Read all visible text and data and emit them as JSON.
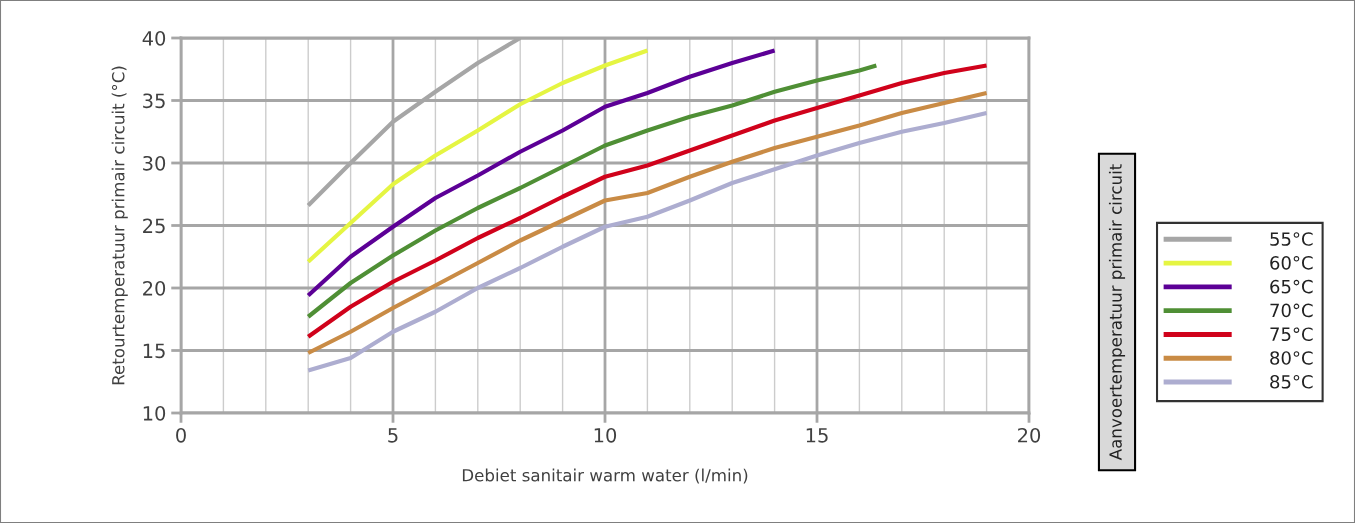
{
  "chart_data": {
    "type": "line",
    "xlabel": "Debiet sanitair warm water (l/min)",
    "ylabel": "Retourtemperatuur primair circuit (°C)",
    "legend_title": "Aanvoertemperatuur primair circuit",
    "series": [
      {
        "name": "55°C",
        "color": "#a6a6a6",
        "x": [
          3,
          4,
          5,
          6,
          7,
          8
        ],
        "values": [
          26.6,
          30.0,
          33.3,
          35.7,
          38.0,
          40.0
        ]
      },
      {
        "name": "60°C",
        "color": "#e5f542",
        "x": [
          3,
          4,
          5,
          6,
          7,
          8,
          9,
          10,
          11
        ],
        "values": [
          22.1,
          25.2,
          28.3,
          30.6,
          32.6,
          34.7,
          36.4,
          37.8,
          39.0
        ]
      },
      {
        "name": "65°C",
        "color": "#5c0096",
        "x": [
          3,
          4,
          5,
          6,
          7,
          8,
          9,
          10,
          11,
          12,
          13,
          14
        ],
        "values": [
          19.4,
          22.5,
          24.9,
          27.2,
          29.0,
          30.9,
          32.6,
          34.5,
          35.6,
          36.9,
          38.0,
          39.0
        ]
      },
      {
        "name": "70°C",
        "color": "#4f8f35",
        "x": [
          3,
          4,
          5,
          6,
          7,
          8,
          9,
          10,
          11,
          12,
          13,
          14,
          15,
          16,
          16.4
        ],
        "values": [
          17.7,
          20.4,
          22.6,
          24.6,
          26.4,
          28.0,
          29.7,
          31.4,
          32.6,
          33.7,
          34.6,
          35.7,
          36.6,
          37.4,
          37.8
        ]
      },
      {
        "name": "75°C",
        "color": "#d0021b",
        "x": [
          3,
          4,
          5,
          6,
          7,
          8,
          9,
          10,
          11,
          12,
          13,
          14,
          15,
          16,
          17,
          18,
          19
        ],
        "values": [
          16.1,
          18.5,
          20.5,
          22.2,
          24.0,
          25.6,
          27.3,
          28.9,
          29.8,
          31.0,
          32.2,
          33.4,
          34.4,
          35.4,
          36.4,
          37.2,
          37.8
        ]
      },
      {
        "name": "80°C",
        "color": "#c98b45",
        "x": [
          3,
          4,
          5,
          6,
          7,
          8,
          9,
          10,
          11,
          12,
          13,
          14,
          15,
          16,
          17,
          18,
          19
        ],
        "values": [
          14.8,
          16.5,
          18.4,
          20.2,
          22.0,
          23.8,
          25.4,
          27.0,
          27.6,
          28.9,
          30.1,
          31.2,
          32.1,
          33.0,
          34.0,
          34.8,
          35.6
        ]
      },
      {
        "name": "85°C",
        "color": "#adadd0",
        "x": [
          3,
          4,
          5,
          6,
          7,
          8,
          9,
          10,
          11,
          12,
          13,
          14,
          15,
          16,
          17,
          18,
          19
        ],
        "values": [
          13.4,
          14.4,
          16.5,
          18.1,
          20.0,
          21.6,
          23.3,
          24.9,
          25.7,
          27.0,
          28.4,
          29.5,
          30.6,
          31.6,
          32.5,
          33.2,
          34.0
        ]
      }
    ],
    "xlim": [
      0,
      20
    ],
    "ylim": [
      10,
      40
    ],
    "xticks": [
      0,
      {
        "value": 1,
        "label": null
      },
      {
        "value": 2,
        "label": null
      },
      {
        "value": 3,
        "label": null
      },
      {
        "value": 4,
        "label": null
      },
      5,
      {
        "value": 6,
        "label": null
      },
      {
        "value": 7,
        "label": null
      },
      {
        "value": 8,
        "label": null
      },
      {
        "value": 9,
        "label": null
      },
      10,
      {
        "value": 11,
        "label": null
      },
      {
        "value": 12,
        "label": null
      },
      {
        "value": 13,
        "label": null
      },
      {
        "value": 14,
        "label": null
      },
      15,
      {
        "value": 16,
        "label": null
      },
      {
        "value": 17,
        "label": null
      },
      {
        "value": 18,
        "label": null
      },
      {
        "value": 19,
        "label": null
      },
      20
    ],
    "yticks": [
      10,
      15,
      20,
      25,
      30,
      35,
      40
    ],
    "grid": true,
    "legend": "right",
    "marker": "none",
    "line_style": "solid"
  }
}
